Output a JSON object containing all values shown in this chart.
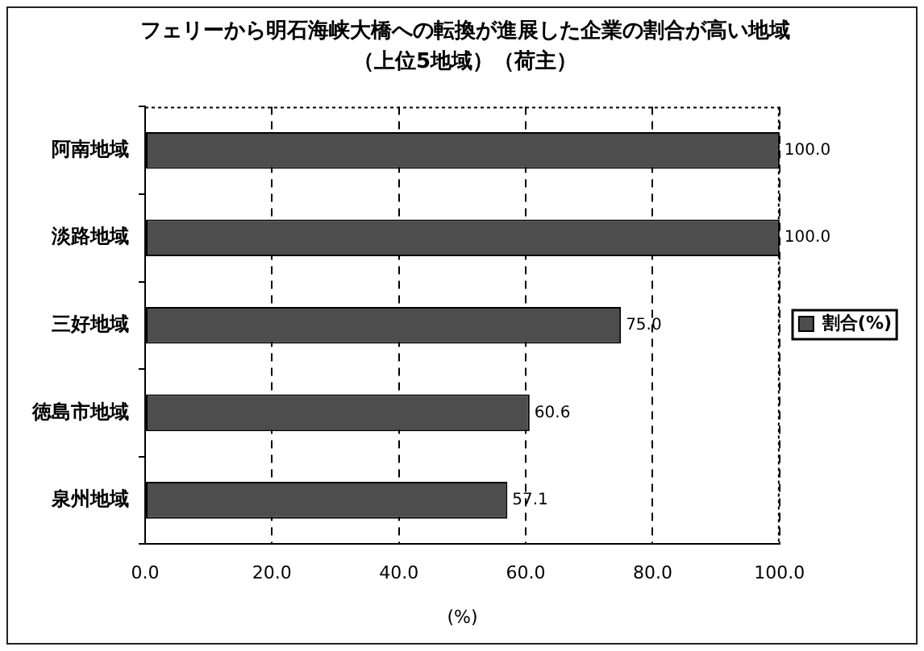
{
  "chart_data": {
    "type": "bar",
    "orientation": "horizontal",
    "title": "フェリーから明石海峡大橋への転換が進展した企業の割合が高い地域",
    "subtitle": "（上位5地域）（荷主）",
    "xlabel": "(%)",
    "categories": [
      "阿南地域",
      "淡路地域",
      "三好地域",
      "徳島市地域",
      "泉州地域"
    ],
    "series": [
      {
        "name": "割合(%)",
        "color": "#4d4d4d",
        "values": [
          100.0,
          100.0,
          75.0,
          60.6,
          57.1
        ],
        "value_labels": [
          "100.0",
          "100.0",
          "75.0",
          "60.6",
          "57.1"
        ]
      }
    ],
    "xlim": [
      0,
      100
    ],
    "xticks": [
      {
        "value": 0,
        "label": "0.0"
      },
      {
        "value": 20,
        "label": "20.0"
      },
      {
        "value": 40,
        "label": "40.0"
      },
      {
        "value": 60,
        "label": "60.0"
      },
      {
        "value": 80,
        "label": "80.0"
      },
      {
        "value": 100,
        "label": "100.0"
      }
    ],
    "grid": "x",
    "legend": "right"
  }
}
